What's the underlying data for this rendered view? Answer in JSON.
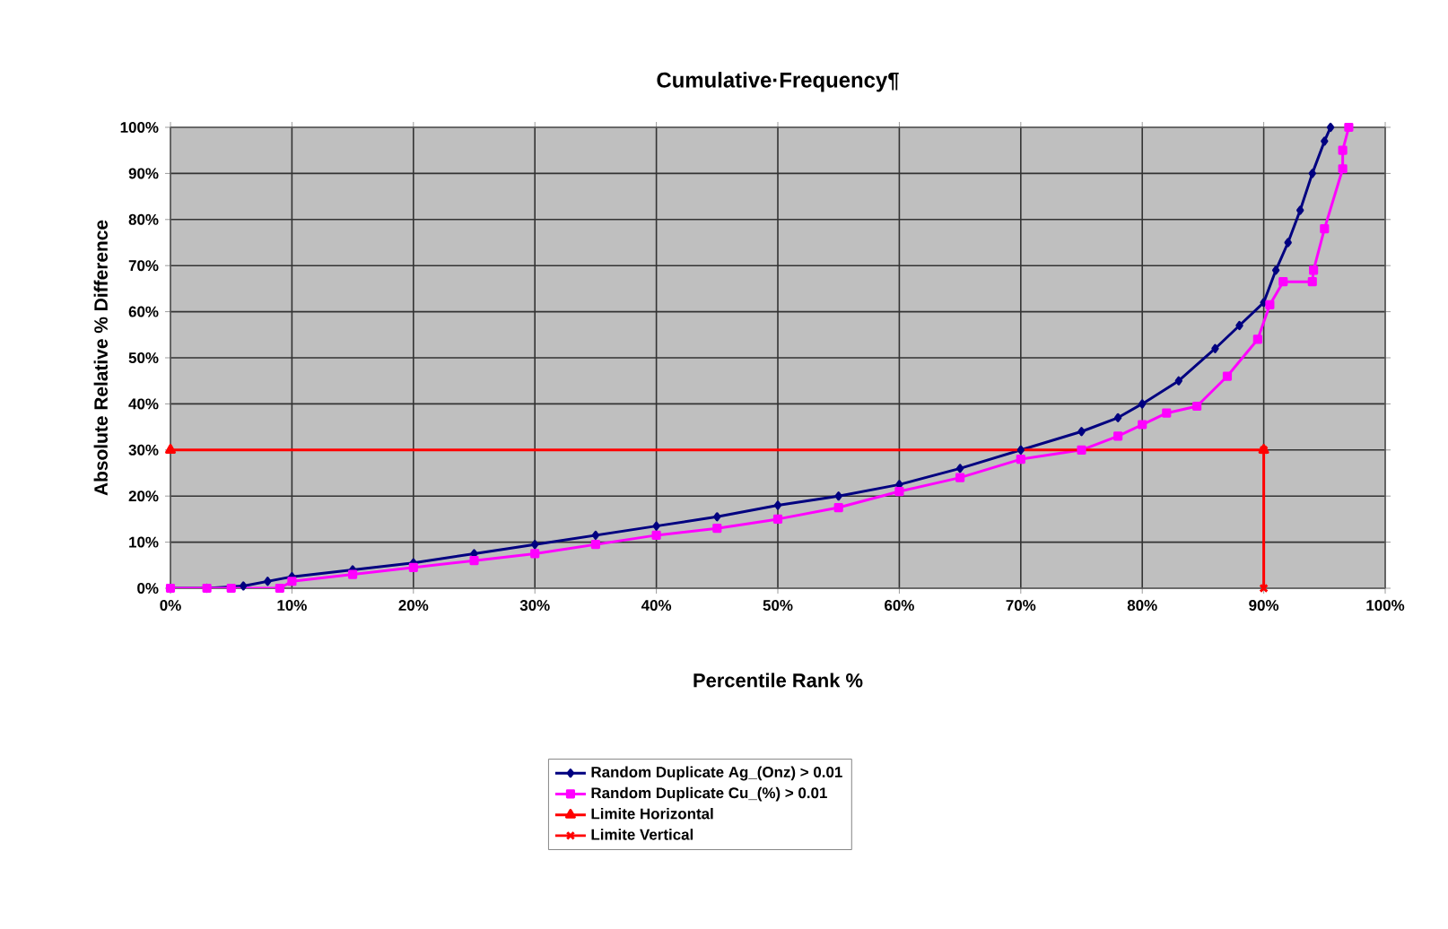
{
  "chart_data": {
    "type": "line",
    "title": "Cumulative·Frequency¶",
    "xlabel": "Percentile Rank %",
    "ylabel": "Absolute Relative % Difference",
    "xlim": [
      0,
      100
    ],
    "ylim": [
      0,
      100
    ],
    "xticks": [
      {
        "value": 0,
        "label": "0%"
      },
      {
        "value": 10,
        "label": "10%"
      },
      {
        "value": 20,
        "label": "20%"
      },
      {
        "value": 30,
        "label": "30%"
      },
      {
        "value": 40,
        "label": "40%"
      },
      {
        "value": 50,
        "label": "50%"
      },
      {
        "value": 60,
        "label": "60%"
      },
      {
        "value": 70,
        "label": "70%"
      },
      {
        "value": 80,
        "label": "80%"
      },
      {
        "value": 90,
        "label": "90%"
      },
      {
        "value": 100,
        "label": "100%"
      }
    ],
    "yticks": [
      {
        "value": 0,
        "label": "0%"
      },
      {
        "value": 10,
        "label": "10%"
      },
      {
        "value": 20,
        "label": "20%"
      },
      {
        "value": 30,
        "label": "30%"
      },
      {
        "value": 40,
        "label": "40%"
      },
      {
        "value": 50,
        "label": "50%"
      },
      {
        "value": 60,
        "label": "60%"
      },
      {
        "value": 70,
        "label": "70%"
      },
      {
        "value": 80,
        "label": "80%"
      },
      {
        "value": 90,
        "label": "90%"
      },
      {
        "value": 100,
        "label": "100%"
      }
    ],
    "grid": true,
    "legend": "bottom",
    "line_style": "solid",
    "series": [
      {
        "name": "Random Duplicate Ag_(Onz) > 0.01",
        "color": "#000080",
        "marker": "diamond",
        "x": [
          0,
          3,
          6,
          8,
          10,
          15,
          20,
          25,
          30,
          35,
          40,
          45,
          50,
          55,
          60,
          65,
          70,
          75,
          78,
          80,
          83,
          86,
          88,
          90,
          91,
          92,
          93,
          94,
          95,
          95.5
        ],
        "values": [
          0,
          0,
          0.5,
          1.5,
          2.5,
          4,
          5.5,
          7.5,
          9.5,
          11.5,
          13.5,
          15.5,
          18,
          20,
          22.5,
          26,
          30,
          34,
          37,
          40,
          45,
          52,
          57,
          62,
          69,
          75,
          82,
          90,
          97,
          100
        ]
      },
      {
        "name": "Random Duplicate Cu_(%) > 0.01",
        "color": "#ff00ff",
        "marker": "square",
        "x": [
          0,
          3,
          5,
          9,
          10,
          15,
          20,
          25,
          30,
          35,
          40,
          45,
          50,
          55,
          60,
          65,
          70,
          75,
          78,
          80,
          82,
          84.5,
          87,
          89.5,
          90.5,
          91.6,
          94,
          94.1,
          95,
          96.5,
          96.5,
          97
        ],
        "values": [
          0,
          0,
          0,
          0,
          1.5,
          3,
          4.5,
          6,
          7.5,
          9.5,
          11.5,
          13,
          15,
          17.5,
          21,
          24,
          28,
          30,
          33,
          35.5,
          38,
          39.5,
          46,
          54,
          61.5,
          66.5,
          66.5,
          69,
          78,
          91,
          95,
          100
        ]
      },
      {
        "name": "Limite Horizontal",
        "color": "#ff0000",
        "marker": "triangle",
        "x": [
          0,
          90
        ],
        "values": [
          30,
          30
        ]
      },
      {
        "name": "Limite Vertical",
        "color": "#ff0000",
        "marker": "cross",
        "x": [
          90,
          90
        ],
        "values": [
          30,
          0
        ]
      }
    ]
  }
}
